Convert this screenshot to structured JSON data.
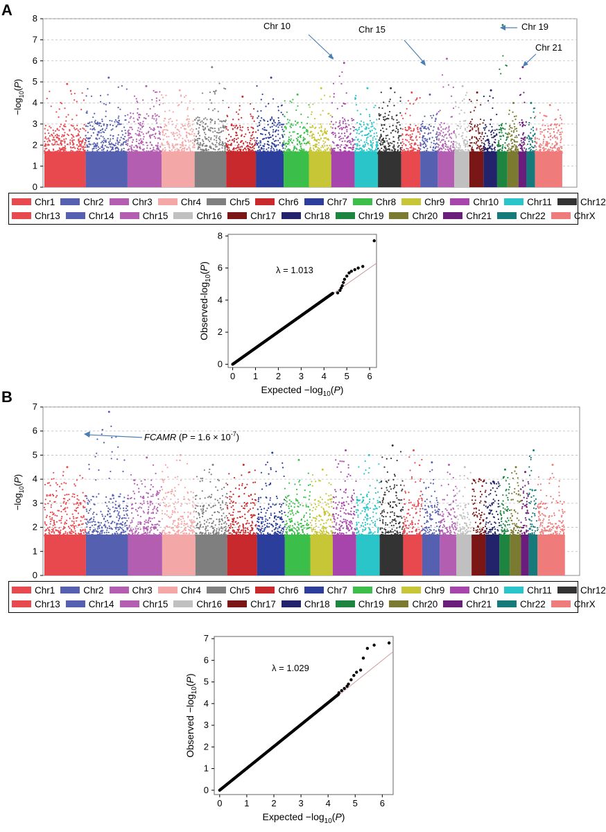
{
  "panels": {
    "a_label": "A",
    "b_label": "B"
  },
  "chromosome_colors": [
    "#e8494f",
    "#5560b0",
    "#b45eb2",
    "#f4a7a7",
    "#7f7f7f",
    "#c8292c",
    "#2b3e9c",
    "#3cbf4a",
    "#c6c636",
    "#a745ac",
    "#29c5c8",
    "#333333",
    "#e8494f",
    "#5560b0",
    "#b45eb2",
    "#c0c0c0",
    "#7a1616",
    "#22236b",
    "#1d8540",
    "#7a7a30",
    "#6a1d7a",
    "#177a7a",
    "#ef7b7b"
  ],
  "legend": {
    "row1": [
      "Chr1",
      "Chr2",
      "Chr3",
      "Chr4",
      "Chr5",
      "Chr6",
      "Chr7",
      "Chr8",
      "Chr9",
      "Chr10",
      "Chr11",
      "Chr12"
    ],
    "row2": [
      "Chr13",
      "Chr14",
      "Chr15",
      "Chr16",
      "Chr17",
      "Chr18",
      "Chr19",
      "Chr20",
      "Chr21",
      "Chr22",
      "ChrX"
    ]
  },
  "annotations_a": {
    "chr10": "Chr 10",
    "chr15": "Chr 15",
    "chr19": "Chr 19",
    "chr21": "Chr 21"
  },
  "annotations_b": {
    "gene": "FCAMR",
    "p_text": "(P = 1.6 × 10",
    "p_exp": "-7",
    "p_close": ")"
  },
  "qq_a_lambda": "λ = 1.013",
  "qq_b_lambda": "λ = 1.029",
  "chart_data": [
    {
      "type": "scatter",
      "name": "manhattan_A",
      "ylabel": "−log10(P)",
      "ylim": [
        0,
        8
      ],
      "yticks": [
        0,
        1,
        2,
        3,
        4,
        5,
        6,
        7,
        8
      ],
      "grid": "horizontal dashed",
      "chromosomes": [
        "1",
        "2",
        "3",
        "4",
        "5",
        "6",
        "7",
        "8",
        "9",
        "10",
        "11",
        "12",
        "13",
        "14",
        "15",
        "16",
        "17",
        "18",
        "19",
        "20",
        "21",
        "22",
        "X"
      ],
      "peaks": [
        4.9,
        5.2,
        4.8,
        4.6,
        5.7,
        4.3,
        5.2,
        4.4,
        4.7,
        5.9,
        4.7,
        4.7,
        4.5,
        4.4,
        6.1,
        4.8,
        4.5,
        4.6,
        7.7,
        4.0,
        5.7,
        4.0,
        3.9
      ],
      "bulk_top": [
        3.0,
        3.3,
        3.5,
        3.3,
        3.3,
        3.0,
        3.3,
        3.1,
        3.0,
        3.3,
        3.2,
        3.5,
        3.0,
        3.0,
        3.1,
        3.2,
        3.2,
        3.0,
        3.0,
        3.0,
        3.1,
        3.0,
        3.0
      ]
    },
    {
      "type": "scatter",
      "name": "qq_A",
      "xlabel": "Expected −log10(P)",
      "ylabel": "Observed-log10(P)",
      "xlim": [
        -0.2,
        6.3
      ],
      "ylim": [
        -0.2,
        8.1
      ],
      "xticks": [
        0,
        1,
        2,
        3,
        4,
        5,
        6
      ],
      "yticks": [
        0,
        2,
        4,
        6,
        8
      ],
      "tail_points": [
        [
          4.6,
          4.45
        ],
        [
          4.7,
          4.6
        ],
        [
          4.75,
          4.75
        ],
        [
          4.8,
          4.9
        ],
        [
          4.85,
          5.1
        ],
        [
          4.9,
          5.3
        ],
        [
          5.0,
          5.5
        ],
        [
          5.1,
          5.7
        ],
        [
          5.2,
          5.8
        ],
        [
          5.35,
          5.9
        ],
        [
          5.5,
          6.0
        ],
        [
          5.7,
          6.1
        ],
        [
          6.2,
          7.7
        ]
      ]
    },
    {
      "type": "scatter",
      "name": "manhattan_B",
      "ylabel": "−log10(P)",
      "ylim": [
        0,
        7
      ],
      "yticks": [
        0,
        1,
        2,
        3,
        4,
        5,
        6,
        7
      ],
      "grid": "horizontal dashed",
      "chromosomes": [
        "1",
        "2",
        "3",
        "4",
        "5",
        "6",
        "7",
        "8",
        "9",
        "10",
        "11",
        "12",
        "13",
        "14",
        "15",
        "16",
        "17",
        "18",
        "19",
        "20",
        "21",
        "22",
        "X"
      ],
      "peaks": [
        4.5,
        6.8,
        4.9,
        5.0,
        4.6,
        4.6,
        5.1,
        4.8,
        4.4,
        5.2,
        5.0,
        5.4,
        5.2,
        4.7,
        4.6,
        4.5,
        4.0,
        3.9,
        4.4,
        4.5,
        4.3,
        5.2,
        4.6
      ],
      "bulk_top": [
        3.4,
        3.4,
        3.5,
        3.6,
        3.4,
        3.5,
        3.3,
        3.3,
        3.2,
        3.6,
        3.4,
        3.9,
        3.5,
        3.3,
        3.2,
        3.0,
        3.9,
        3.8,
        3.7,
        3.6,
        3.5,
        3.6,
        3.1
      ]
    },
    {
      "type": "scatter",
      "name": "qq_B",
      "xlabel": "Expected −log10(P)",
      "ylabel": "Observed −log10(P)",
      "xlim": [
        -0.2,
        6.4
      ],
      "ylim": [
        -0.2,
        7.1
      ],
      "xticks": [
        0,
        1,
        2,
        3,
        4,
        5,
        6
      ],
      "yticks": [
        0,
        1,
        2,
        3,
        4,
        5,
        6,
        7
      ],
      "tail_points": [
        [
          4.4,
          4.5
        ],
        [
          4.5,
          4.6
        ],
        [
          4.6,
          4.7
        ],
        [
          4.7,
          4.8
        ],
        [
          4.75,
          4.9
        ],
        [
          4.85,
          5.1
        ],
        [
          4.95,
          5.3
        ],
        [
          5.05,
          5.45
        ],
        [
          5.2,
          5.55
        ],
        [
          5.3,
          6.1
        ],
        [
          5.45,
          6.55
        ],
        [
          5.7,
          6.7
        ],
        [
          6.25,
          6.8
        ]
      ]
    }
  ]
}
